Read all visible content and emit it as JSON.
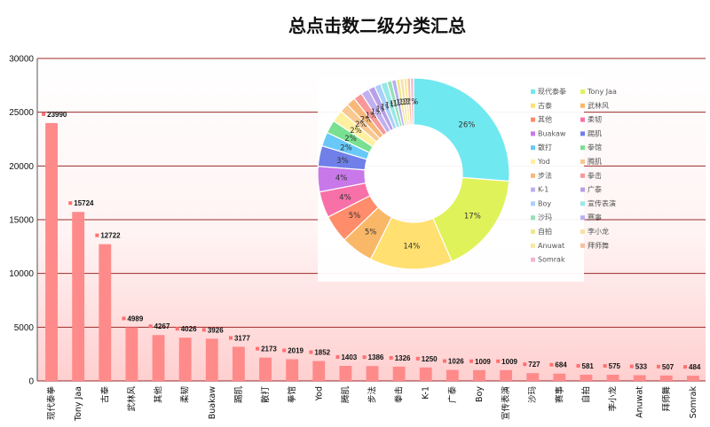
{
  "colors": {
    "bar": "#ff8a8a",
    "marker": "#ff7070",
    "gridline": "#9e2a2a",
    "bg_top": "#ffffff",
    "bg_bottom": "#ffd2d2"
  },
  "chart_data": [
    {
      "type": "bar",
      "title": "总点击数二级分类汇总",
      "xlabel": "",
      "ylabel": "",
      "ylim": [
        0,
        30000
      ],
      "yticks": [
        0,
        5000,
        10000,
        15000,
        20000,
        25000,
        30000
      ],
      "grid": true,
      "categories": [
        "现代泰拳",
        "Tony Jaa",
        "古泰",
        "武林风",
        "其他",
        "柔韧",
        "Buakaw",
        "踢肌",
        "散打",
        "拳馆",
        "Yod",
        "腾肌",
        "步法",
        "拳击",
        "K-1",
        "广泰",
        "Boy",
        "宣传表演",
        "沙玛",
        "赛事",
        "自拍",
        "李小龙",
        "Anuwat",
        "拜师舞",
        "Somrak"
      ],
      "values": [
        23990,
        15724,
        12722,
        4989,
        4267,
        4026,
        3926,
        3177,
        2173,
        2019,
        1852,
        1403,
        1386,
        1326,
        1250,
        1026,
        1009,
        1009,
        727,
        684,
        581,
        575,
        533,
        507,
        484
      ]
    },
    {
      "type": "pie",
      "donut": true,
      "legend_position": "right",
      "categories": [
        "现代泰拳",
        "Tony Jaa",
        "古泰",
        "武林风",
        "其他",
        "柔韧",
        "Buakaw",
        "踢肌",
        "散打",
        "拳馆",
        "Yod",
        "腾肌",
        "步法",
        "拳击",
        "K-1",
        "广泰",
        "Boy",
        "宣传表演",
        "沙玛",
        "赛事",
        "自拍",
        "李小龙",
        "Anuwat",
        "拜师舞",
        "Somrak"
      ],
      "values": [
        23990,
        15724,
        12722,
        4989,
        4267,
        4026,
        3926,
        3177,
        2173,
        2019,
        1852,
        1403,
        1386,
        1326,
        1250,
        1026,
        1009,
        1009,
        727,
        684,
        581,
        575,
        533,
        507,
        484
      ],
      "colors": [
        "#70e8f0",
        "#e0f25a",
        "#ffe070",
        "#f9b868",
        "#ff8c6a",
        "#f870a8",
        "#c878e8",
        "#7080e8",
        "#68c8f8",
        "#78e090",
        "#fff0a0",
        "#f8c890",
        "#f8b878",
        "#f89898",
        "#c0b0f0",
        "#b8a0e8",
        "#a8d0f8",
        "#98e8e8",
        "#98e0b8",
        "#b8b0f0",
        "#f0e890",
        "#f8e0a8",
        "#f8e8a0",
        "#f8c0a0",
        "#f0b8d0"
      ],
      "pct_labels": [
        "26%",
        "17%",
        "14%",
        "5%",
        "5%",
        "4%",
        "4%",
        "3%",
        "2%",
        "2%",
        "2%",
        "2%",
        "2%",
        "1%",
        "1%",
        "1%",
        "1%",
        "1%",
        "1%",
        "1%",
        "1%",
        "1%",
        "1%",
        "1%",
        "1%"
      ]
    }
  ]
}
